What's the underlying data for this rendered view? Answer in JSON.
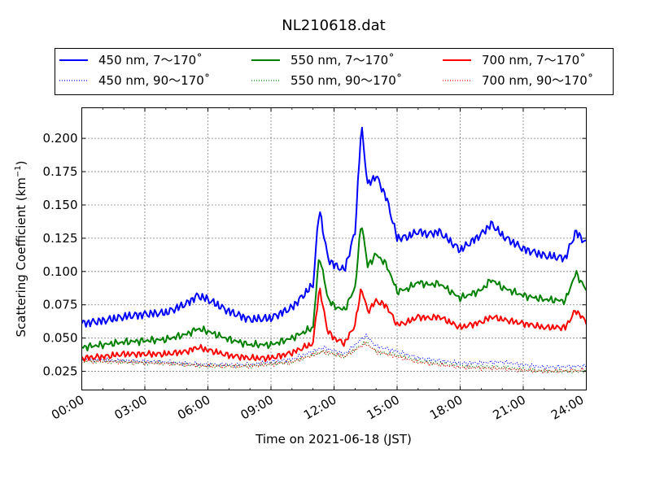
{
  "chart_data": {
    "type": "line",
    "title": "NL210618.dat",
    "xlabel": "Time on 2021-06-18 (JST)",
    "ylabel_main": "Scattering Coefficient (km",
    "ylabel_sup": "−1",
    "ylabel_tail": ")",
    "xlim": [
      "00:00",
      "24:00"
    ],
    "ylim": [
      0.011,
      0.223
    ],
    "x_ticks": [
      "00:00",
      "03:00",
      "06:00",
      "09:00",
      "12:00",
      "15:00",
      "18:00",
      "21:00",
      "24:00"
    ],
    "y_ticks": [
      "0.025",
      "0.050",
      "0.075",
      "0.100",
      "0.125",
      "0.150",
      "0.175",
      "0.200"
    ],
    "grid": true,
    "legend_position": "top",
    "legend_columns": 3,
    "series": [
      {
        "name": "450 nm, 7～170˚",
        "color": "#0000ff",
        "style": "solid",
        "x_hours": [
          0,
          1,
          2,
          3,
          4,
          5,
          5.5,
          6,
          7,
          8,
          9,
          10,
          11,
          11.3,
          11.7,
          12,
          12.5,
          13,
          13.3,
          13.6,
          14,
          14.5,
          15,
          15.5,
          16,
          16.5,
          17,
          18,
          19,
          19.5,
          20,
          21,
          22,
          23,
          23.5,
          24
        ],
        "y": [
          0.061,
          0.063,
          0.066,
          0.068,
          0.069,
          0.076,
          0.082,
          0.079,
          0.07,
          0.064,
          0.065,
          0.073,
          0.09,
          0.148,
          0.11,
          0.105,
          0.101,
          0.13,
          0.21,
          0.165,
          0.172,
          0.155,
          0.125,
          0.126,
          0.13,
          0.128,
          0.13,
          0.116,
          0.128,
          0.136,
          0.127,
          0.117,
          0.112,
          0.11,
          0.13,
          0.121
        ]
      },
      {
        "name": "450 nm, 90～170˚",
        "color": "#0000ff",
        "style": "dotted",
        "x_hours": [
          0,
          2,
          4,
          6,
          8,
          10,
          11.5,
          12.5,
          13.5,
          14,
          15,
          16,
          18,
          20,
          22,
          24
        ],
        "y": [
          0.034,
          0.033,
          0.032,
          0.03,
          0.03,
          0.034,
          0.043,
          0.038,
          0.052,
          0.044,
          0.04,
          0.035,
          0.031,
          0.032,
          0.028,
          0.029
        ]
      },
      {
        "name": "550 nm, 7～170˚",
        "color": "#008000",
        "style": "solid",
        "x_hours": [
          0,
          1,
          2,
          3,
          4,
          5,
          5.5,
          6,
          7,
          8,
          9,
          10,
          11,
          11.3,
          11.7,
          12,
          12.5,
          13,
          13.3,
          13.6,
          14,
          14.5,
          15,
          15.5,
          16,
          16.5,
          17,
          18,
          19,
          19.5,
          20,
          21,
          22,
          23,
          23.5,
          24
        ],
        "y": [
          0.043,
          0.045,
          0.047,
          0.048,
          0.049,
          0.053,
          0.057,
          0.055,
          0.049,
          0.045,
          0.045,
          0.05,
          0.058,
          0.113,
          0.08,
          0.074,
          0.071,
          0.088,
          0.138,
          0.104,
          0.113,
          0.105,
          0.085,
          0.087,
          0.092,
          0.09,
          0.091,
          0.08,
          0.086,
          0.094,
          0.088,
          0.082,
          0.079,
          0.078,
          0.099,
          0.086
        ]
      },
      {
        "name": "550 nm, 90～170˚",
        "color": "#008000",
        "style": "dotted",
        "x_hours": [
          0,
          2,
          4,
          6,
          8,
          10,
          11.5,
          12.5,
          13.5,
          14,
          15,
          16,
          18,
          20,
          22,
          24
        ],
        "y": [
          0.033,
          0.032,
          0.031,
          0.029,
          0.029,
          0.032,
          0.04,
          0.036,
          0.047,
          0.04,
          0.037,
          0.033,
          0.029,
          0.028,
          0.025,
          0.025
        ]
      },
      {
        "name": "700 nm, 7～170˚",
        "color": "#ff0000",
        "style": "solid",
        "x_hours": [
          0,
          1,
          2,
          3,
          4,
          5,
          5.5,
          6,
          7,
          8,
          9,
          10,
          11,
          11.3,
          11.7,
          12,
          12.5,
          13,
          13.3,
          13.6,
          14,
          14.5,
          15,
          15.5,
          16,
          16.5,
          17,
          18,
          19,
          19.5,
          20,
          21,
          22,
          23,
          23.5,
          24
        ],
        "y": [
          0.035,
          0.036,
          0.038,
          0.038,
          0.038,
          0.04,
          0.043,
          0.041,
          0.037,
          0.035,
          0.035,
          0.039,
          0.046,
          0.088,
          0.055,
          0.05,
          0.046,
          0.06,
          0.088,
          0.07,
          0.078,
          0.074,
          0.06,
          0.062,
          0.066,
          0.065,
          0.066,
          0.058,
          0.062,
          0.066,
          0.064,
          0.061,
          0.058,
          0.058,
          0.071,
          0.062
        ]
      },
      {
        "name": "700 nm, 90～170˚",
        "color": "#ff0000",
        "style": "dotted",
        "x_hours": [
          0,
          2,
          4,
          6,
          8,
          10,
          11.5,
          12.5,
          13.5,
          14,
          15,
          16,
          18,
          20,
          22,
          24
        ],
        "y": [
          0.033,
          0.032,
          0.031,
          0.029,
          0.029,
          0.032,
          0.04,
          0.036,
          0.046,
          0.04,
          0.036,
          0.032,
          0.028,
          0.027,
          0.025,
          0.026
        ]
      }
    ]
  }
}
